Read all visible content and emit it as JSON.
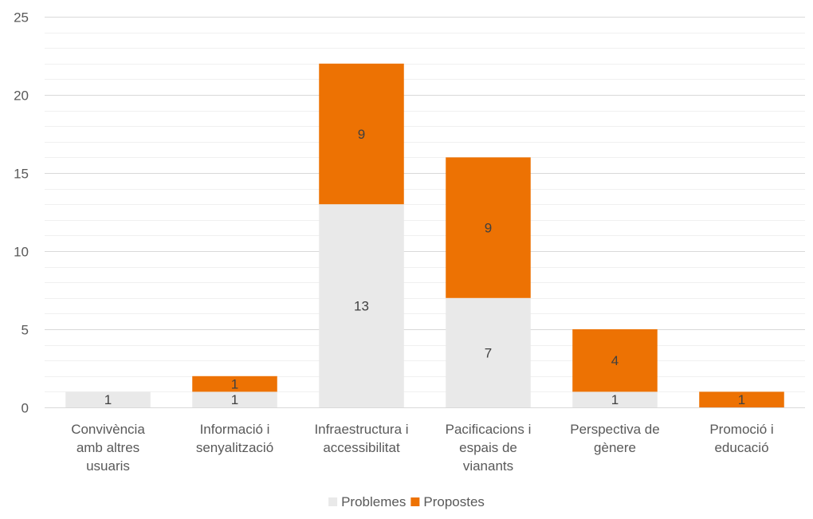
{
  "chart_data": {
    "type": "bar",
    "stacked": true,
    "title": "",
    "xlabel": "",
    "ylabel": "",
    "ylim": [
      0,
      25
    ],
    "yticks": [
      0,
      5,
      10,
      15,
      20,
      25
    ],
    "minor_gridlines": true,
    "legend_position": "bottom",
    "categories": [
      "Convivència amb altres usuaris",
      "Informació i senyalització",
      "Infraestructura i accessibilitat",
      "Pacificacions i espais de vianants",
      "Perspectiva de gènere",
      "Promoció i educació"
    ],
    "category_lines": [
      [
        "Convivència",
        "amb altres",
        "usuaris"
      ],
      [
        "Informació i",
        "senyalització"
      ],
      [
        "Infraestructura i",
        "accessibilitat"
      ],
      [
        "Pacificacions i",
        "espais de",
        "vianants"
      ],
      [
        "Perspectiva de",
        "gènere"
      ],
      [
        "Promoció i",
        "educació"
      ]
    ],
    "series": [
      {
        "name": "Problemes",
        "color": "#e9e9e9",
        "values": [
          1,
          1,
          13,
          7,
          1,
          0
        ],
        "labels": [
          "1",
          "1",
          "13",
          "7",
          "1",
          ""
        ]
      },
      {
        "name": "Propostes",
        "color": "#ed7203",
        "values": [
          0,
          1,
          9,
          9,
          4,
          1
        ],
        "labels": [
          "",
          "1",
          "9",
          "9",
          "4",
          "1"
        ]
      }
    ]
  }
}
